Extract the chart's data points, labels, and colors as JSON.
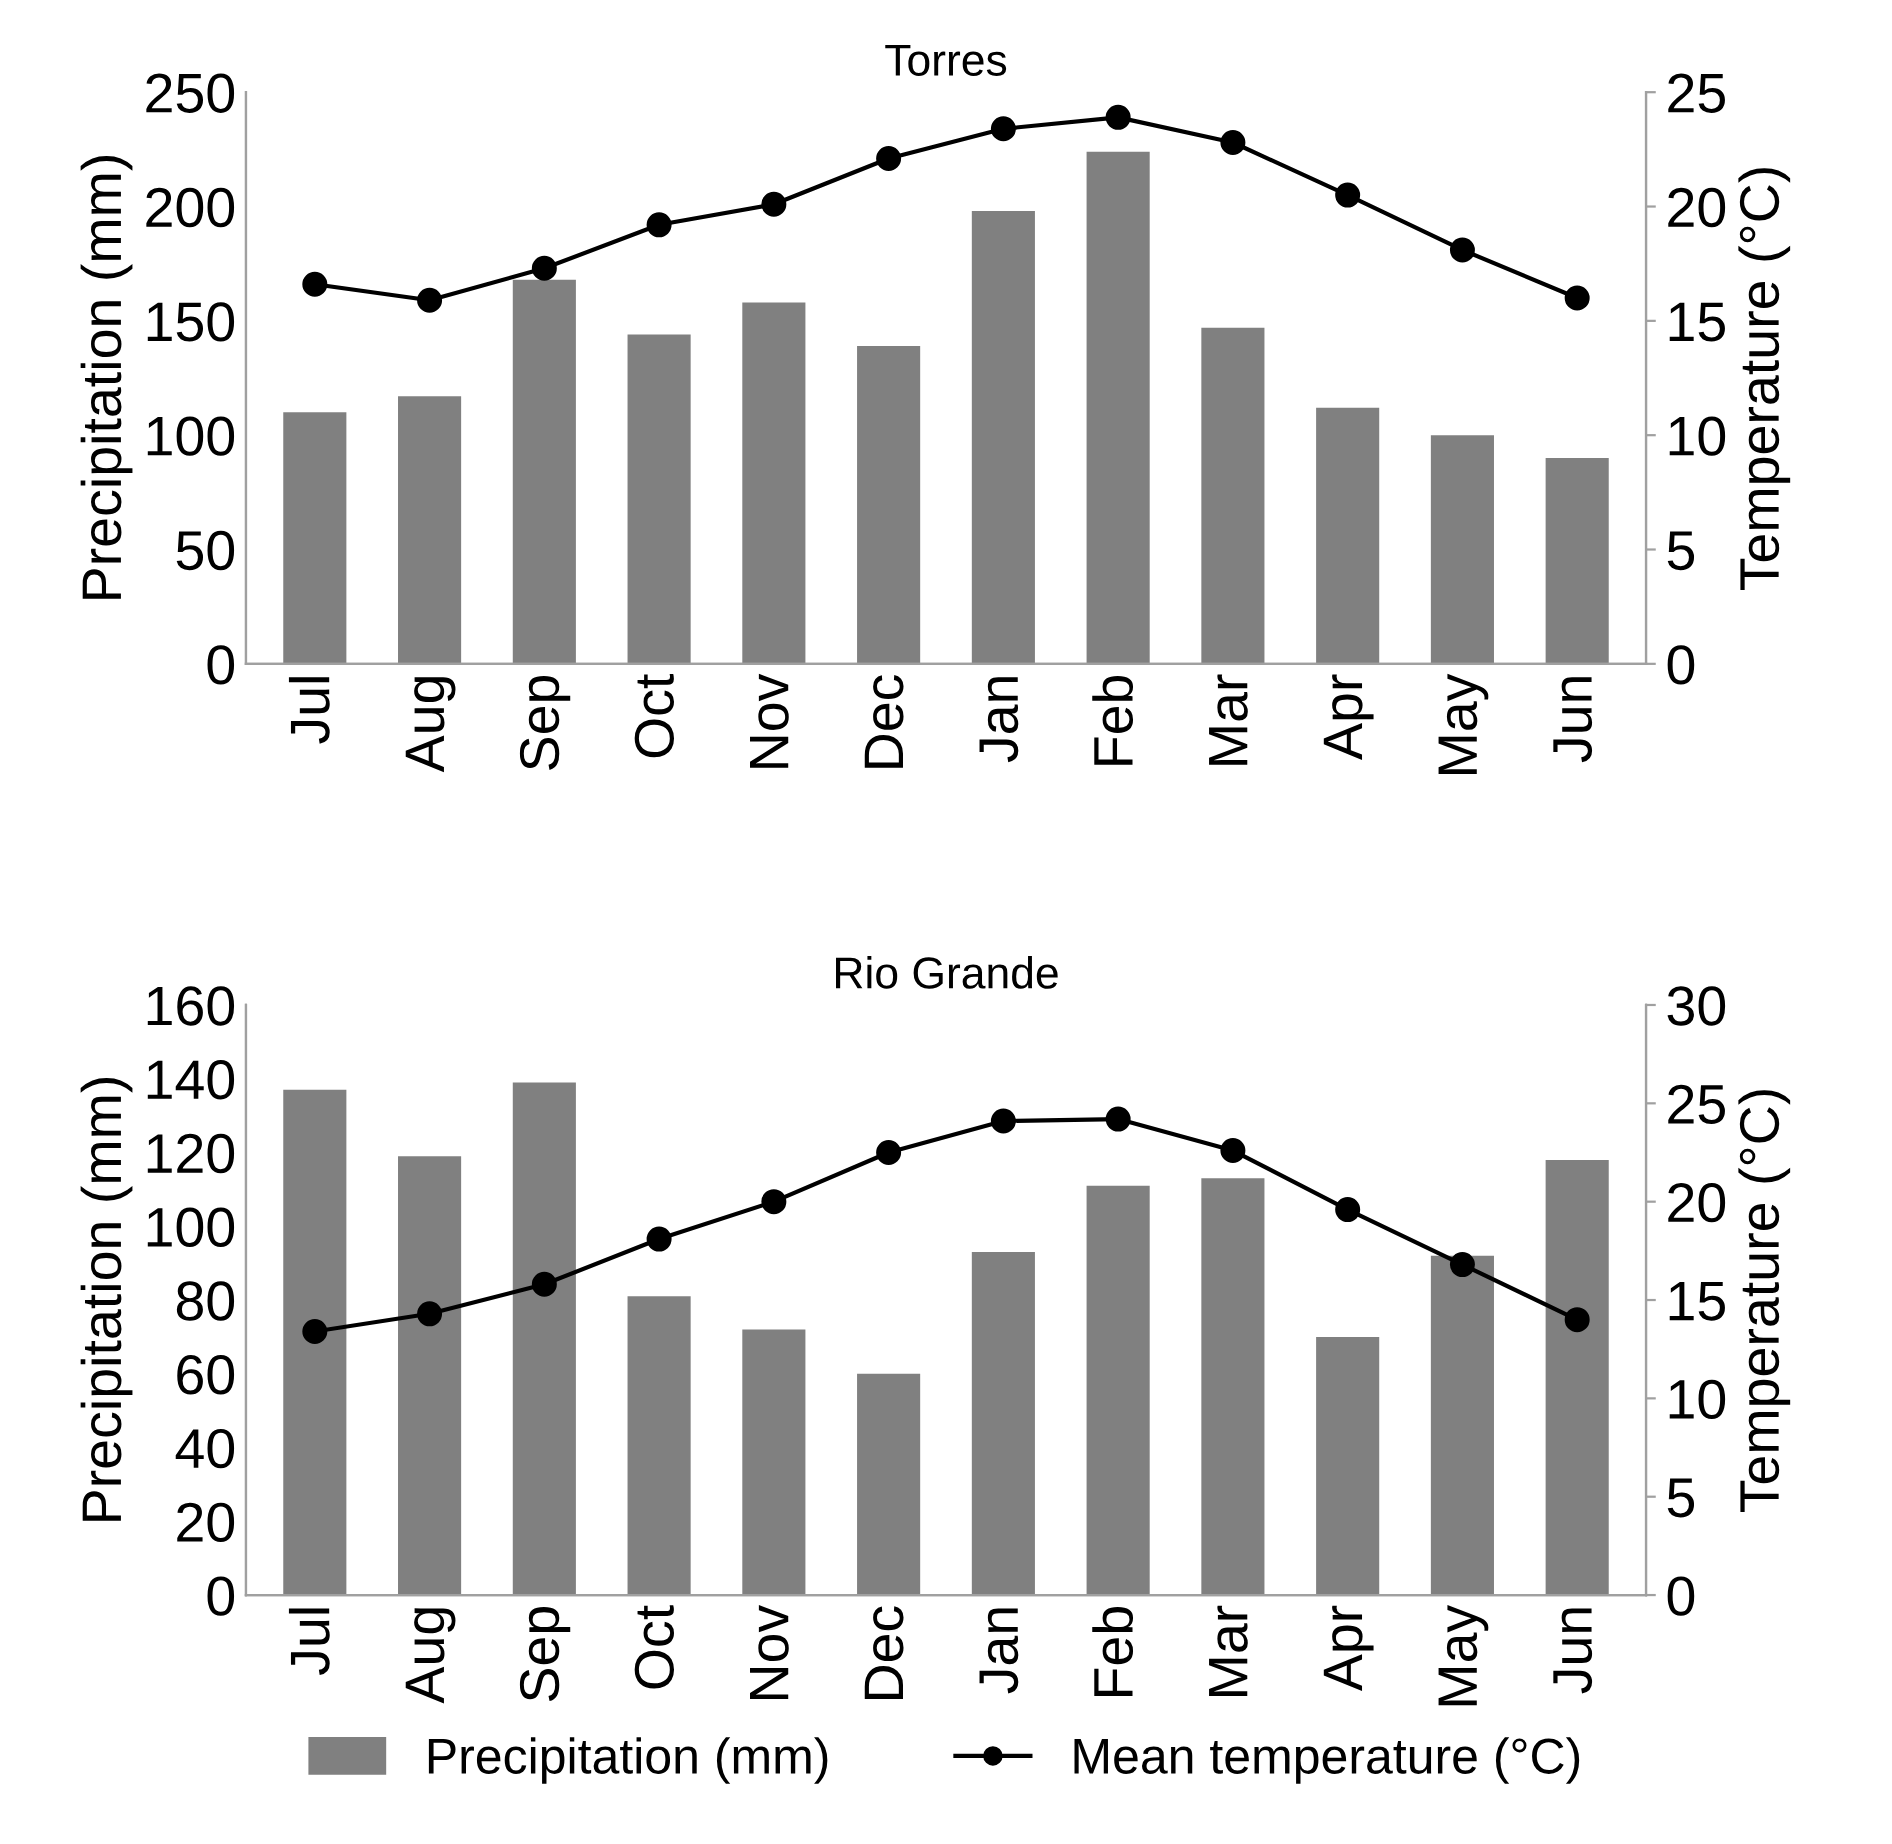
{
  "chart_data": [
    {
      "type": "bar",
      "title": "Torres",
      "ylabel": "Precipitation (mm)",
      "y2label": "Temperature (°C)",
      "categories": [
        "Jul",
        "Aug",
        "Sep",
        "Oct",
        "Nov",
        "Dec",
        "Jan",
        "Feb",
        "Mar",
        "Apr",
        "May",
        "Jun"
      ],
      "series": [
        {
          "color": "#808080",
          "values": [
            110,
            117,
            168,
            144,
            158,
            139,
            198,
            224,
            147,
            112,
            100,
            90
          ]
        },
        {
          "type": "line",
          "axis": "y2",
          "color": "#000000",
          "marker": "circle",
          "values": [
            16.6,
            15.9,
            17.3,
            19.2,
            20.1,
            22.1,
            23.4,
            23.9,
            22.8,
            20.5,
            18.1,
            16.0
          ]
        }
      ],
      "ylim": [
        0,
        250
      ],
      "yticks": [
        0,
        50,
        100,
        150,
        200,
        250
      ],
      "y2lim": [
        0,
        25
      ],
      "y2ticks": [
        0,
        5,
        10,
        15,
        20,
        25
      ],
      "grid": false,
      "legend": false
    },
    {
      "type": "bar",
      "title": "Rio Grande",
      "ylabel": "Precipitation (mm)",
      "y2label": "Temperature (°C)",
      "categories": [
        "Jul",
        "Aug",
        "Sep",
        "Oct",
        "Nov",
        "Dec",
        "Jan",
        "Feb",
        "Mar",
        "Apr",
        "May",
        "Jun"
      ],
      "series": [
        {
          "name": "Precipitation (mm)",
          "color": "#808080",
          "values": [
            137,
            119,
            139,
            81,
            72,
            60,
            93,
            111,
            113,
            70,
            92,
            118
          ]
        },
        {
          "type": "line",
          "axis": "y2",
          "name": "Mean temperature (°C)",
          "color": "#000000",
          "marker": "circle",
          "values": [
            13.4,
            14.3,
            15.8,
            18.1,
            20.0,
            22.5,
            24.1,
            24.2,
            22.6,
            19.6,
            16.8,
            14.0
          ]
        }
      ],
      "ylim": [
        0,
        160
      ],
      "yticks": [
        0,
        20,
        40,
        60,
        80,
        100,
        120,
        140,
        160
      ],
      "y2lim": [
        0,
        30
      ],
      "y2ticks": [
        0,
        5,
        10,
        15,
        20,
        25,
        30
      ],
      "grid": false,
      "legend": "bottom"
    }
  ]
}
